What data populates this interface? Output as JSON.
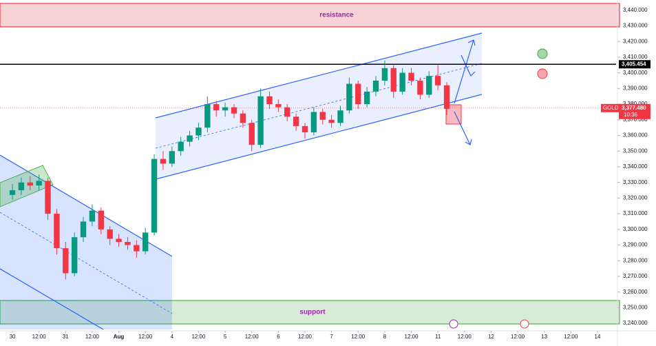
{
  "chart_data": {
    "type": "candlestick",
    "symbol": "GOLD",
    "up_color": "#089981",
    "down_color": "#f23645",
    "x": [
      0,
      4,
      8,
      12,
      16,
      20,
      24,
      28,
      32,
      36,
      40,
      44,
      48,
      52,
      56,
      60,
      64,
      68,
      72,
      76,
      80,
      84,
      88,
      92,
      96,
      100,
      104,
      108,
      112,
      116,
      120,
      124,
      128,
      132,
      136,
      140,
      144,
      148,
      152,
      156,
      160,
      164,
      168,
      172,
      176,
      180,
      184,
      188,
      192,
      196
    ],
    "ohlc": [
      [
        3322,
        3329,
        3319,
        3325
      ],
      [
        3325,
        3333,
        3322,
        3330
      ],
      [
        3330,
        3334,
        3325,
        3328
      ],
      [
        3328,
        3335,
        3325,
        3331
      ],
      [
        3331,
        3333,
        3306,
        3310
      ],
      [
        3310,
        3313,
        3284,
        3288
      ],
      [
        3288,
        3292,
        3268,
        3272
      ],
      [
        3272,
        3298,
        3270,
        3295
      ],
      [
        3295,
        3308,
        3292,
        3305
      ],
      [
        3305,
        3316,
        3302,
        3312
      ],
      [
        3312,
        3314,
        3297,
        3300
      ],
      [
        3300,
        3302,
        3290,
        3294
      ],
      [
        3294,
        3297,
        3289,
        3292
      ],
      [
        3292,
        3295,
        3287,
        3290
      ],
      [
        3290,
        3293,
        3282,
        3286
      ],
      [
        3286,
        3301,
        3284,
        3298
      ],
      [
        3298,
        3348,
        3296,
        3345
      ],
      [
        3345,
        3350,
        3338,
        3342
      ],
      [
        3342,
        3353,
        3340,
        3350
      ],
      [
        3350,
        3359,
        3347,
        3356
      ],
      [
        3356,
        3363,
        3353,
        3360
      ],
      [
        3360,
        3368,
        3357,
        3365
      ],
      [
        3365,
        3385,
        3362,
        3380
      ],
      [
        3380,
        3382,
        3372,
        3376
      ],
      [
        3376,
        3381,
        3372,
        3378
      ],
      [
        3378,
        3380,
        3371,
        3374
      ],
      [
        3374,
        3376,
        3365,
        3368
      ],
      [
        3368,
        3370,
        3350,
        3354
      ],
      [
        3354,
        3390,
        3352,
        3385
      ],
      [
        3385,
        3388,
        3377,
        3380
      ],
      [
        3380,
        3383,
        3375,
        3378
      ],
      [
        3378,
        3380,
        3369,
        3372
      ],
      [
        3372,
        3374,
        3363,
        3366
      ],
      [
        3366,
        3368,
        3358,
        3362
      ],
      [
        3362,
        3378,
        3360,
        3375
      ],
      [
        3375,
        3377,
        3367,
        3370
      ],
      [
        3370,
        3373,
        3365,
        3368
      ],
      [
        3368,
        3379,
        3366,
        3376
      ],
      [
        3376,
        3397,
        3374,
        3393
      ],
      [
        3393,
        3395,
        3377,
        3380
      ],
      [
        3380,
        3391,
        3378,
        3388
      ],
      [
        3388,
        3398,
        3385,
        3395
      ],
      [
        3395,
        3408,
        3392,
        3403
      ],
      [
        3403,
        3405,
        3384,
        3388
      ],
      [
        3388,
        3403,
        3386,
        3400
      ],
      [
        3400,
        3403,
        3392,
        3395
      ],
      [
        3395,
        3397,
        3383,
        3386
      ],
      [
        3386,
        3401,
        3384,
        3398
      ],
      [
        3398,
        3405,
        3389,
        3392
      ],
      [
        3392,
        3394,
        3373,
        3377
      ]
    ],
    "xlim": [
      -5.6,
      272.4
    ],
    "xticks": [
      {
        "value": 0,
        "label": "30"
      },
      {
        "value": 12,
        "label": "12:00"
      },
      {
        "value": 24,
        "label": "31"
      },
      {
        "value": 36,
        "label": "12:00"
      },
      {
        "value": 48,
        "label": "Aug"
      },
      {
        "value": 60,
        "label": "12:00"
      },
      {
        "value": 72,
        "label": "4"
      },
      {
        "value": 84,
        "label": "12:00"
      },
      {
        "value": 96,
        "label": "5"
      },
      {
        "value": 108,
        "label": "12:00"
      },
      {
        "value": 120,
        "label": "6"
      },
      {
        "value": 132,
        "label": "12:00"
      },
      {
        "value": 144,
        "label": "7"
      },
      {
        "value": 156,
        "label": "12:00"
      },
      {
        "value": 168,
        "label": "8"
      },
      {
        "value": 180,
        "label": "12:00"
      },
      {
        "value": 192,
        "label": "11"
      },
      {
        "value": 204,
        "label": "12:00"
      },
      {
        "value": 216,
        "label": "12"
      },
      {
        "value": 228,
        "label": "12:00"
      },
      {
        "value": 240,
        "label": "13"
      },
      {
        "value": 252,
        "label": "12:00"
      },
      {
        "value": 264,
        "label": "14"
      }
    ],
    "ylim": [
      3236.1,
      3446.5
    ],
    "yticks": [
      {
        "value": 3440,
        "label": "3,440.000"
      },
      {
        "value": 3430,
        "label": "3,430.000"
      },
      {
        "value": 3420,
        "label": "3,420.000"
      },
      {
        "value": 3410,
        "label": "3,410.000"
      },
      {
        "value": 3400,
        "label": "3,400.000"
      },
      {
        "value": 3390,
        "label": "3,390.000"
      },
      {
        "value": 3380,
        "label": "3,380.000"
      },
      {
        "value": 3370,
        "label": "3,370.000"
      },
      {
        "value": 3360,
        "label": "3,360.000"
      },
      {
        "value": 3350,
        "label": "3,350.000"
      },
      {
        "value": 3340,
        "label": "3,340.000"
      },
      {
        "value": 3330,
        "label": "3,330.000"
      },
      {
        "value": 3320,
        "label": "3,320.000"
      },
      {
        "value": 3310,
        "label": "3,310.000"
      },
      {
        "value": 3300,
        "label": "3,300.000"
      },
      {
        "value": 3290,
        "label": "3,290.000"
      },
      {
        "value": 3280,
        "label": "3,280.000"
      },
      {
        "value": 3270,
        "label": "3,270.000"
      },
      {
        "value": 3260,
        "label": "3,260.000"
      },
      {
        "value": 3250,
        "label": "3,250.000"
      },
      {
        "value": 3240,
        "label": "3,240.000"
      }
    ],
    "level": {
      "value": 3405.454,
      "label": "3,405.454"
    },
    "last_price": {
      "value": 3377.48,
      "label": "3,377.480",
      "countdown": "10:36"
    },
    "zones": {
      "resistance": "resistance",
      "support": "support"
    }
  }
}
